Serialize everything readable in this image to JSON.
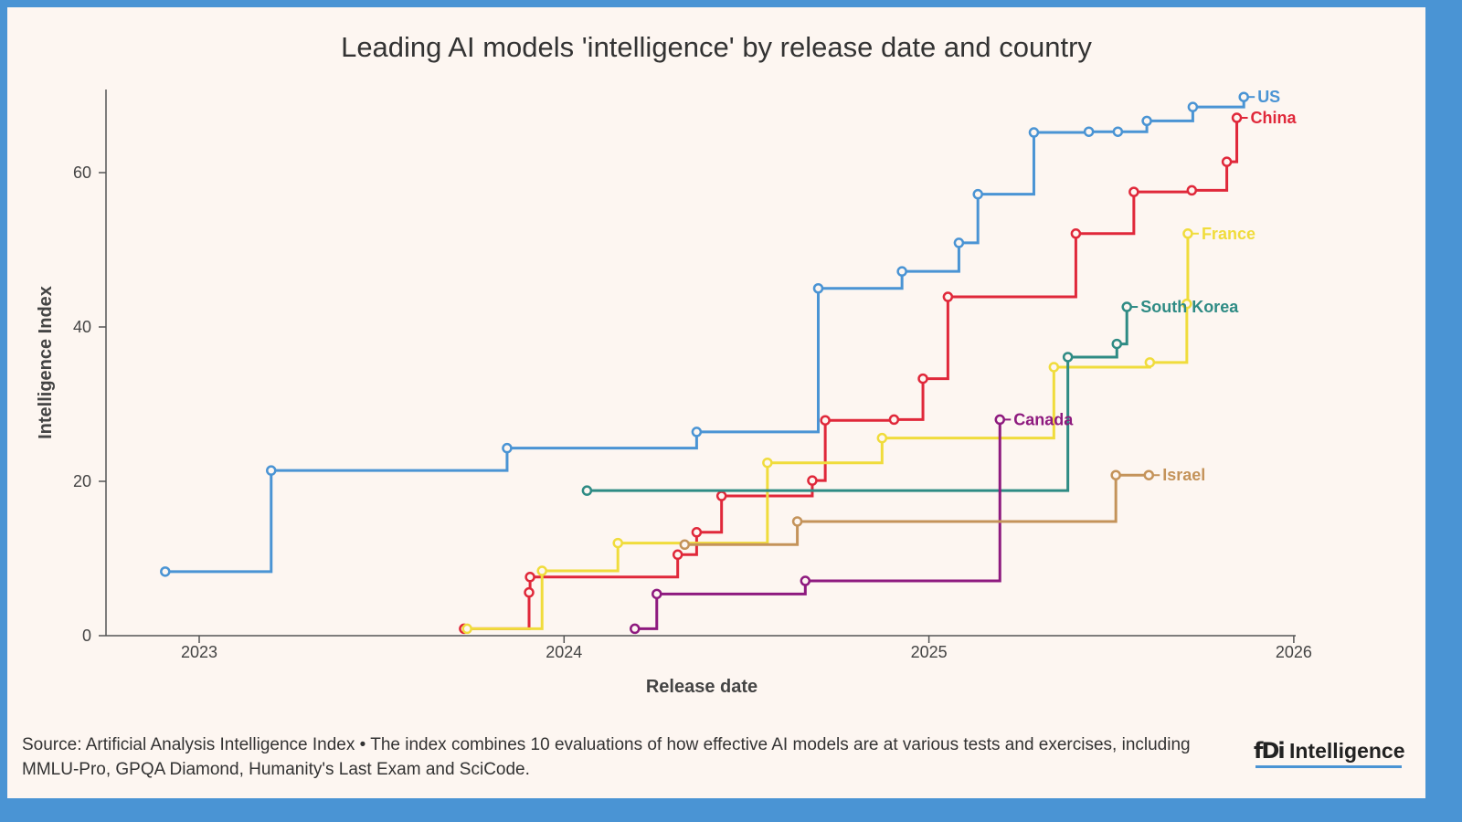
{
  "chart_data": {
    "type": "line",
    "step": "after",
    "title": "Leading AI models 'intelligence' by release date and country",
    "xlabel": "Release date",
    "ylabel": "Intelligence Index",
    "xlim": [
      "2022-09-15",
      "2026-01-01"
    ],
    "ylim": [
      0,
      70
    ],
    "x_ticks": [
      "2023",
      "2024",
      "2025",
      "2026"
    ],
    "y_ticks": [
      0,
      20,
      40,
      60
    ],
    "grid": false,
    "legend": "direct labels at line ends",
    "series": [
      {
        "name": "US",
        "color": "#4a94d4",
        "points": [
          [
            "2022-11-28",
            8.3
          ],
          [
            "2023-03-14",
            21.4
          ],
          [
            "2023-11-05",
            24.3
          ],
          [
            "2024-05-13",
            26.4
          ],
          [
            "2024-09-12",
            45.0
          ],
          [
            "2024-12-05",
            47.2
          ],
          [
            "2025-01-31",
            50.9
          ],
          [
            "2025-02-19",
            57.2
          ],
          [
            "2025-04-16",
            65.2
          ],
          [
            "2025-06-10",
            65.3
          ],
          [
            "2025-07-09",
            65.3
          ],
          [
            "2025-08-07",
            66.7
          ],
          [
            "2025-09-22",
            68.5
          ],
          [
            "2025-11-12",
            69.8
          ]
        ]
      },
      {
        "name": "China",
        "color": "#e0283a",
        "points": [
          [
            "2023-09-23",
            0.9
          ],
          [
            "2023-11-27",
            5.6
          ],
          [
            "2023-11-28",
            7.6
          ],
          [
            "2024-04-24",
            10.5
          ],
          [
            "2024-05-13",
            13.4
          ],
          [
            "2024-06-07",
            18.1
          ],
          [
            "2024-09-06",
            20.1
          ],
          [
            "2024-09-19",
            27.9
          ],
          [
            "2024-11-27",
            28.0
          ],
          [
            "2024-12-26",
            33.3
          ],
          [
            "2025-01-20",
            43.9
          ],
          [
            "2025-05-28",
            52.1
          ],
          [
            "2025-07-25",
            57.5
          ],
          [
            "2025-09-21",
            57.7
          ],
          [
            "2025-10-26",
            61.4
          ],
          [
            "2025-11-05",
            67.1
          ]
        ]
      },
      {
        "name": "France",
        "color": "#f0dc3c",
        "points": [
          [
            "2023-09-26",
            0.9
          ],
          [
            "2023-12-10",
            8.4
          ],
          [
            "2024-02-24",
            12.0
          ],
          [
            "2024-07-23",
            22.4
          ],
          [
            "2024-11-15",
            25.6
          ],
          [
            "2025-05-06",
            34.8
          ],
          [
            "2025-08-10",
            35.4
          ],
          [
            "2025-09-16",
            43.0
          ],
          [
            "2025-09-17",
            52.1
          ]
        ]
      },
      {
        "name": "South Korea",
        "color": "#2e8b84",
        "points": [
          [
            "2024-01-24",
            18.8
          ],
          [
            "2025-05-20",
            36.1
          ],
          [
            "2025-07-08",
            37.8
          ],
          [
            "2025-07-18",
            42.6
          ]
        ]
      },
      {
        "name": "Canada",
        "color": "#8e1a7f",
        "points": [
          [
            "2024-03-12",
            0.9
          ],
          [
            "2024-04-03",
            5.4
          ],
          [
            "2024-08-30",
            7.1
          ],
          [
            "2025-03-13",
            28.0
          ]
        ]
      },
      {
        "name": "Israel",
        "color": "#c4935a",
        "points": [
          [
            "2024-05-01",
            11.8
          ],
          [
            "2024-08-22",
            14.8
          ],
          [
            "2025-07-07",
            20.8
          ],
          [
            "2025-08-09",
            20.8
          ]
        ]
      }
    ]
  },
  "footer": {
    "source": "Source: Artificial Analysis Intelligence Index • The index combines 10 evaluations of how effective AI models are at various tests and exercises, including MMLU-Pro, GPQA Diamond, Humanity's Last Exam and SciCode.",
    "logo_fdi": "fDi",
    "logo_text": "Intelligence"
  },
  "colors": {
    "background": "#fdf6f1",
    "border": "#4a94d4",
    "axis": "#555555"
  }
}
